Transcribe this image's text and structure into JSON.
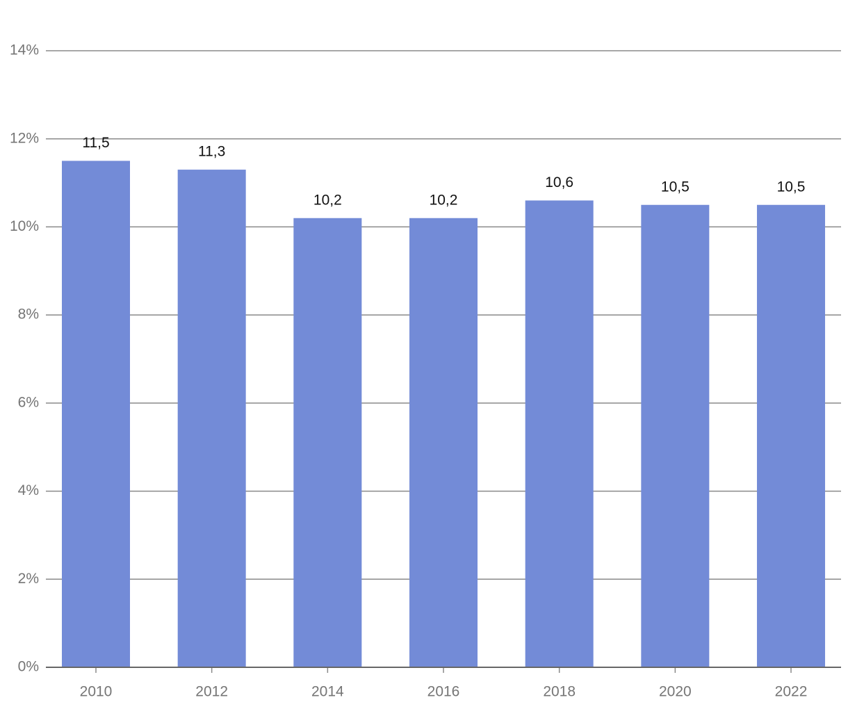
{
  "chart_data": {
    "type": "bar",
    "categories": [
      "2010",
      "2012",
      "2014",
      "2016",
      "2018",
      "2020",
      "2022"
    ],
    "values": [
      11.5,
      11.3,
      10.2,
      10.2,
      10.6,
      10.5,
      10.5
    ],
    "value_labels": [
      "11,5",
      "11,3",
      "10,2",
      "10,2",
      "10,6",
      "10,5",
      "10,5"
    ],
    "color": "#738bd7",
    "ylim": [
      0,
      14
    ],
    "yticks": [
      {
        "value": 0,
        "label": "0%"
      },
      {
        "value": 2,
        "label": "2%"
      },
      {
        "value": 4,
        "label": "4%"
      },
      {
        "value": 6,
        "label": "6%"
      },
      {
        "value": 8,
        "label": "8%"
      },
      {
        "value": 10,
        "label": "10%"
      },
      {
        "value": 12,
        "label": "12%"
      },
      {
        "value": 14,
        "label": "14%"
      }
    ],
    "grid": true
  }
}
